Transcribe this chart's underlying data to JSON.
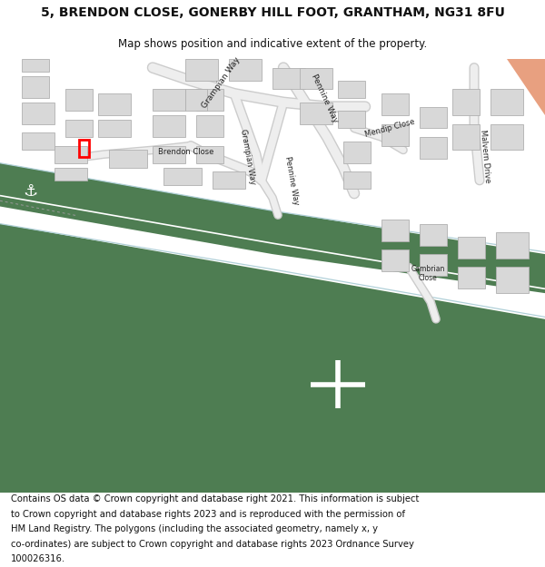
{
  "title": "5, BRENDON CLOSE, GONERBY HILL FOOT, GRANTHAM, NG31 8FU",
  "subtitle": "Map shows position and indicative extent of the property.",
  "footer_lines": [
    "Contains OS data © Crown copyright and database right 2021. This information is subject",
    "to Crown copyright and database rights 2023 and is reproduced with the permission of",
    "HM Land Registry. The polygons (including the associated geometry, namely x, y",
    "co-ordinates) are subject to Crown copyright and database rights 2023 Ordnance Survey",
    "100026316."
  ],
  "bg_color": "#ffffff",
  "map_bg": "#f7f7f7",
  "road_green": "#4e7d52",
  "road_white": "#ffffff",
  "building_color": "#d8d8d8",
  "building_edge": "#b0b0b0",
  "plot_color": "#ff0000",
  "light_blue": "#b0d0d8",
  "top_right_color": "#e8a080",
  "title_fontsize": 10,
  "subtitle_fontsize": 8.5,
  "footer_fontsize": 7.2,
  "label_fontsize": 6.5,
  "road_color": "#eeeeee",
  "road_edge_color": "#cccccc"
}
